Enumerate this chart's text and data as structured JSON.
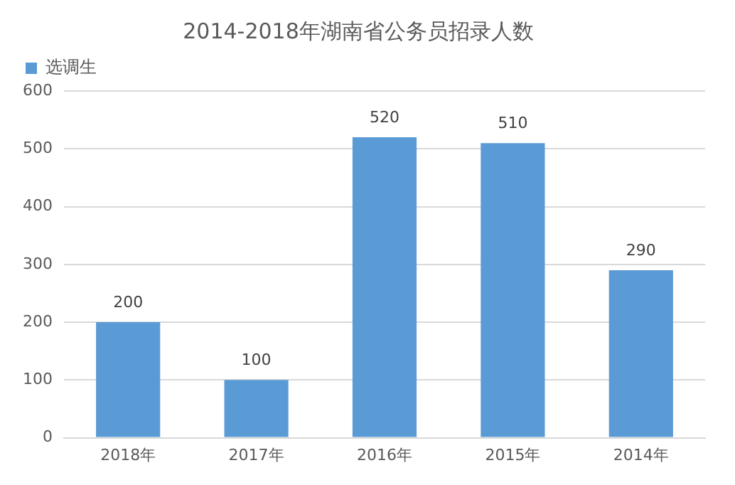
{
  "chart_data": {
    "type": "bar",
    "title": "2014-2018年湖南省公务员招录人数",
    "categories": [
      "2018年",
      "2017年",
      "2016年",
      "2015年",
      "2014年"
    ],
    "series": [
      {
        "name": "选调生",
        "color": "#5b9bd5",
        "values": [
          200,
          100,
          520,
          510,
          290
        ]
      }
    ],
    "ylim": [
      0,
      600
    ],
    "yticks": [
      0,
      100,
      200,
      300,
      400,
      500,
      600
    ],
    "grid": "y",
    "legend": "top left",
    "data_labels": true
  }
}
